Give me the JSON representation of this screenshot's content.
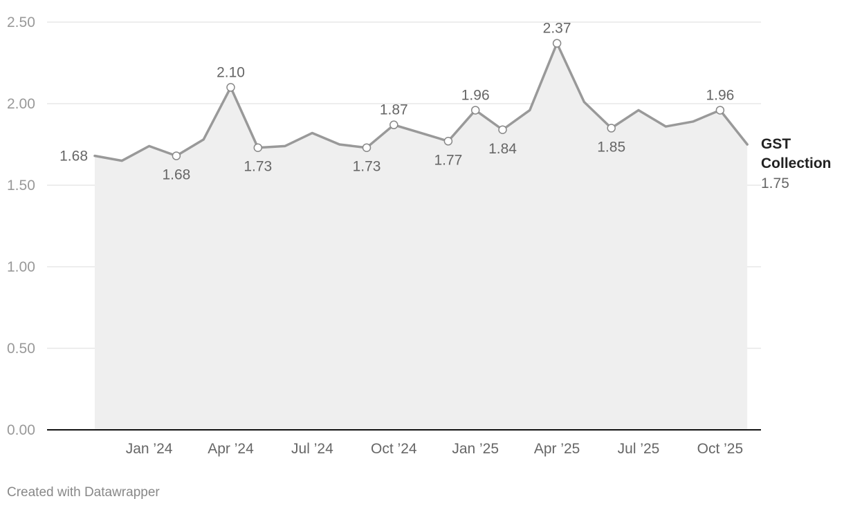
{
  "chart_data": {
    "type": "area",
    "series": [
      {
        "name": "GST Collection",
        "color": "#999999",
        "fill": "#efefef",
        "x": [
          "2023-11",
          "2023-12",
          "2024-01",
          "2024-02",
          "2024-03",
          "2024-04",
          "2024-05",
          "2024-06",
          "2024-07",
          "2024-08",
          "2024-09",
          "2024-10",
          "2024-11",
          "2024-12",
          "2025-01",
          "2025-02",
          "2025-03",
          "2025-04",
          "2025-05",
          "2025-06",
          "2025-07",
          "2025-08",
          "2025-09",
          "2025-10",
          "2025-11"
        ],
        "values": [
          1.68,
          1.65,
          1.74,
          1.68,
          1.78,
          2.1,
          1.73,
          1.74,
          1.82,
          1.75,
          1.73,
          1.87,
          1.82,
          1.77,
          1.96,
          1.84,
          1.96,
          2.37,
          2.01,
          1.85,
          1.96,
          1.86,
          1.89,
          1.96,
          1.75
        ]
      }
    ],
    "labeled_points": [
      {
        "x": "2023-11",
        "label": "1.68",
        "position": "left",
        "marker": false
      },
      {
        "x": "2024-02",
        "label": "1.68",
        "position": "below",
        "marker": true
      },
      {
        "x": "2024-04",
        "label": "2.10",
        "position": "above",
        "marker": true
      },
      {
        "x": "2024-05",
        "label": "1.73",
        "position": "below",
        "marker": true
      },
      {
        "x": "2024-09",
        "label": "1.73",
        "position": "below",
        "marker": true
      },
      {
        "x": "2024-10",
        "label": "1.87",
        "position": "above",
        "marker": true
      },
      {
        "x": "2024-12",
        "label": "1.77",
        "position": "below",
        "marker": true
      },
      {
        "x": "2025-01",
        "label": "1.96",
        "position": "above",
        "marker": true
      },
      {
        "x": "2025-02",
        "label": "1.84",
        "position": "below",
        "marker": true
      },
      {
        "x": "2025-04",
        "label": "2.37",
        "position": "above",
        "marker": true
      },
      {
        "x": "2025-06",
        "label": "1.85",
        "position": "below",
        "marker": true
      },
      {
        "x": "2025-10",
        "label": "1.96",
        "position": "above",
        "marker": true
      }
    ],
    "end_label": {
      "name_lines": [
        "GST",
        "Collection"
      ],
      "value": "1.75"
    },
    "x_ticks": [
      {
        "x": "2024-01",
        "label": "Jan ’24"
      },
      {
        "x": "2024-04",
        "label": "Apr ’24"
      },
      {
        "x": "2024-07",
        "label": "Jul ’24"
      },
      {
        "x": "2024-10",
        "label": "Oct ’24"
      },
      {
        "x": "2025-01",
        "label": "Jan ’25"
      },
      {
        "x": "2025-04",
        "label": "Apr ’25"
      },
      {
        "x": "2025-07",
        "label": "Jul ’25"
      },
      {
        "x": "2025-10",
        "label": "Oct ’25"
      }
    ],
    "y_ticks": [
      "0.00",
      "0.50",
      "1.00",
      "1.50",
      "2.00",
      "2.50"
    ],
    "ylim": [
      0,
      2.5
    ],
    "grid": true,
    "title": "",
    "xlabel": "",
    "ylabel": ""
  },
  "footer": {
    "credit": "Created with Datawrapper"
  }
}
